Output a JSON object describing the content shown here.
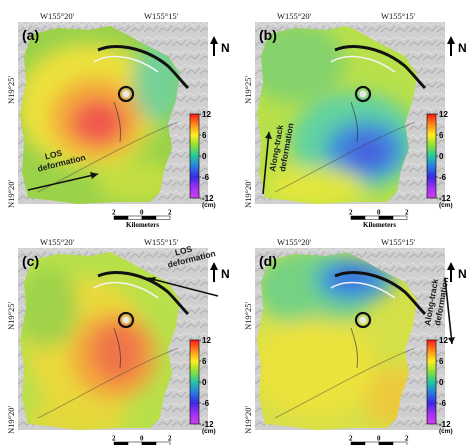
{
  "colorbar_colors": [
    "#ff1818",
    "#ff8a1a",
    "#ffee22",
    "#8be03a",
    "#22c8a0",
    "#2a7ae0",
    "#3a2ae0",
    "#a030f0",
    "#d040f0"
  ],
  "panels": [
    {
      "id": "a",
      "label": "(a)",
      "lon_left": "W155°20′",
      "lon_right": "W155°15′",
      "lat_top": "N19°25′",
      "lat_bottom": "N19°20′",
      "north": "N",
      "annotation": "LOS\ndeformation",
      "annotation_type": "los-arrow",
      "scale_ticks": [
        "2",
        "0",
        "2"
      ],
      "scale_label": "Kilometers",
      "colorbar_ticks": [
        "12",
        "6",
        "0",
        "-6",
        "-12"
      ],
      "colorbar_unit": "(cm)",
      "pattern": "uplift-west"
    },
    {
      "id": "b",
      "label": "(b)",
      "lon_left": "W155°20′",
      "lon_right": "W155°15′",
      "lat_top": "N19°25′",
      "lat_bottom": "N19°20′",
      "north": "N",
      "annotation": "Along-track\ndeformation",
      "annotation_type": "along-track-arrow",
      "scale_ticks": [
        "2",
        "0",
        "2"
      ],
      "scale_label": "Kilometers",
      "colorbar_ticks": [
        "12",
        "6",
        "0",
        "-6",
        "-12"
      ],
      "colorbar_unit": "(cm)",
      "pattern": "negative-center"
    },
    {
      "id": "c",
      "label": "(c)",
      "lon_left": "W155°20′",
      "lon_right": "W155°15′",
      "lat_top": "N19°25′",
      "lat_bottom": "N19°20′",
      "north": "N",
      "annotation": "LOS\ndeformation",
      "annotation_type": "los-arrow",
      "scale_ticks": [
        "2",
        "0",
        "2"
      ],
      "scale_label": "Kilometers",
      "colorbar_ticks": [
        "12",
        "6",
        "0",
        "-6",
        "-12"
      ],
      "colorbar_unit": "(cm)",
      "pattern": "uplift-east"
    },
    {
      "id": "d",
      "label": "(d)",
      "lon_left": "W155°20′",
      "lon_right": "W155°15′",
      "lat_top": "N19°25′",
      "lat_bottom": "N19°20′",
      "north": "N",
      "annotation": "Along-track\ndeformation",
      "annotation_type": "along-track-arrow",
      "scale_ticks": [
        "2",
        "0",
        "2"
      ],
      "scale_label": "Kilometers",
      "colorbar_ticks": [
        "12",
        "6",
        "0",
        "-6",
        "-12"
      ],
      "colorbar_unit": "(cm)",
      "pattern": "negative-north"
    }
  ]
}
